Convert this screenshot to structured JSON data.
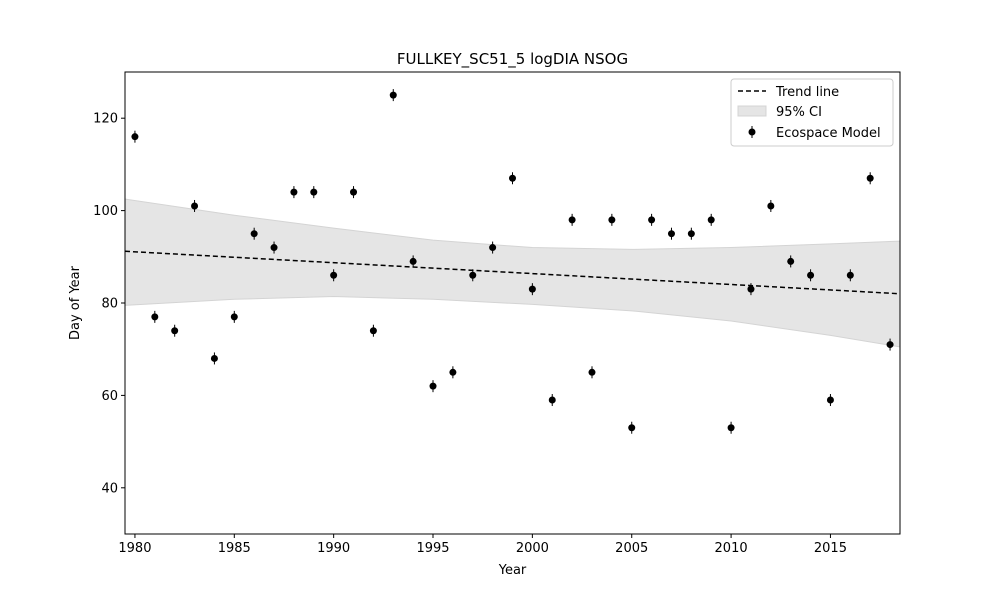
{
  "chart_data": {
    "type": "scatter",
    "title": "FULLKEY_SC51_5 logDIA NSOG",
    "xlabel": "Year",
    "ylabel": "Day of Year",
    "xlim": [
      1979.5,
      2018.5
    ],
    "ylim": [
      30,
      130
    ],
    "xticks": [
      1980,
      1985,
      1990,
      1995,
      2000,
      2005,
      2010,
      2015
    ],
    "yticks": [
      40,
      60,
      80,
      100,
      120
    ],
    "grid": false,
    "legend_position": "top-right",
    "legend": [
      "Trend line",
      "95% CI",
      "Ecospace Model"
    ],
    "series": [
      {
        "name": "Ecospace Model",
        "x": [
          1980,
          1981,
          1982,
          1983,
          1984,
          1985,
          1986,
          1987,
          1988,
          1989,
          1990,
          1991,
          1992,
          1993,
          1994,
          1995,
          1996,
          1997,
          1998,
          1999,
          2000,
          2001,
          2002,
          2003,
          2004,
          2005,
          2006,
          2007,
          2008,
          2009,
          2010,
          2011,
          2012,
          2013,
          2014,
          2015,
          2016,
          2017,
          2018
        ],
        "y": [
          116,
          77,
          74,
          101,
          68,
          77,
          95,
          92,
          104,
          104,
          86,
          104,
          74,
          125,
          89,
          62,
          65,
          86,
          92,
          107,
          83,
          59,
          98,
          65,
          98,
          53,
          98,
          95,
          95,
          98,
          53,
          83,
          101,
          89,
          86,
          59,
          86,
          107,
          71
        ]
      }
    ],
    "trend_line": {
      "x": [
        1979.5,
        2018.5
      ],
      "y": [
        91.2,
        82.0
      ]
    },
    "confidence_interval": {
      "x": [
        1979.5,
        1985,
        1990,
        1995,
        2000,
        2005,
        2010,
        2015,
        2018.5
      ],
      "lower": [
        79.5,
        80.8,
        81.4,
        80.8,
        79.7,
        78.3,
        76.1,
        73.0,
        70.5
      ],
      "upper": [
        102.5,
        99.0,
        96.2,
        93.6,
        92.0,
        91.6,
        92.0,
        92.8,
        93.4
      ]
    },
    "colors": {
      "points": "#000000",
      "trend": "#000000",
      "ci_fill": "#e5e5e5",
      "ci_edge": "#d4d4d4",
      "axes": "#000000"
    }
  }
}
